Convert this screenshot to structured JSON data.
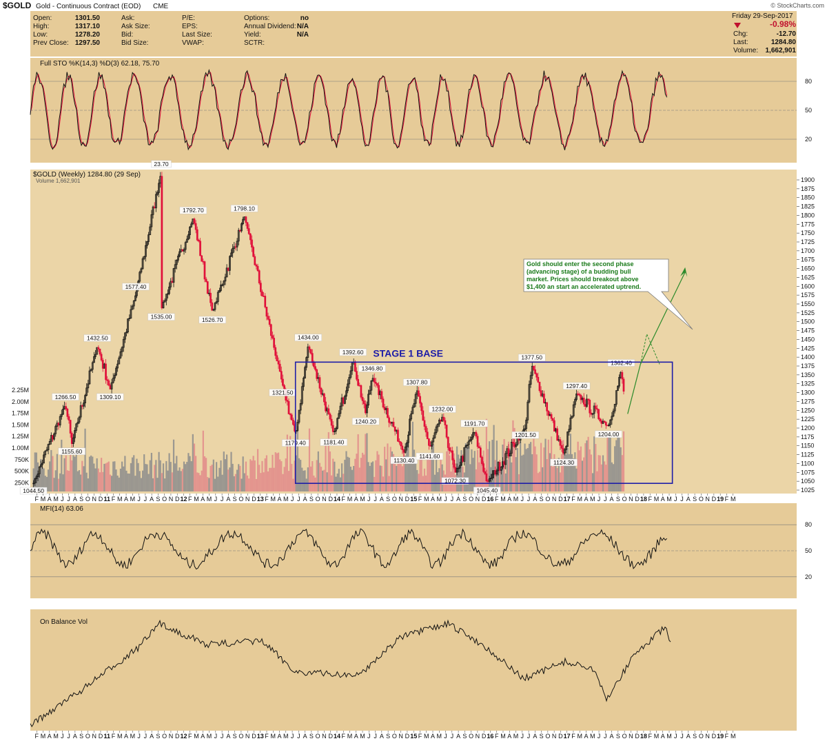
{
  "header": {
    "symbol": "$GOLD",
    "description": "Gold - Continuous Contract (EOD)",
    "exchange": "CME",
    "source": "© StockCharts.com",
    "date": "Friday  29-Sep-2017",
    "pct_change": "-0.98%",
    "stats_left": [
      {
        "label": "Open:",
        "value": "1301.50"
      },
      {
        "label": "High:",
        "value": "1317.10"
      },
      {
        "label": "Low:",
        "value": "1278.20"
      },
      {
        "label": "Prev Close:",
        "value": "1297.50"
      }
    ],
    "stats_mid": [
      "Ask:",
      "Ask Size:",
      "Bid:",
      "Bid Size:"
    ],
    "stats_mid2": [
      "P/E:",
      "EPS:",
      "Last Size:",
      "VWAP:"
    ],
    "stats_right": [
      {
        "label": "Options:",
        "value": "no"
      },
      {
        "label": "Annual Dividend:",
        "value": "N/A"
      },
      {
        "label": "Yield:",
        "value": "N/A"
      },
      {
        "label": "SCTR:",
        "value": ""
      }
    ],
    "stats_far": [
      {
        "label": "Chg:",
        "value": "-12.70"
      },
      {
        "label": "Last:",
        "value": "1284.80"
      },
      {
        "label": "Volume:",
        "value": "1,662,901"
      }
    ]
  },
  "colors": {
    "bg": "#e6cb98",
    "up": "#111111",
    "down": "#e0103a",
    "box": "#1c1ca8",
    "arrow": "#2b8a2b",
    "k_line": "#111111",
    "d_line": "#e0103a",
    "vol_up": "#8c8c8c",
    "vol_down": "#e28a8a"
  },
  "chart_data": [
    {
      "type": "line",
      "title": "Full STO %K(14,3) %D(3) 62.18, 75.70",
      "ylim": [
        0,
        100
      ],
      "yticks": [
        20,
        50,
        80
      ],
      "series": [
        {
          "name": "%K",
          "last": 62.18
        },
        {
          "name": "%D",
          "last": 75.7
        }
      ]
    },
    {
      "type": "candlestick",
      "title": "$GOLD (Weekly) 1284.80 (29 Sep)",
      "volume_label": "Volume 1,662,901",
      "ylim": [
        1025,
        1900
      ],
      "yticks": [
        1025,
        1050,
        1075,
        1100,
        1125,
        1150,
        1175,
        1200,
        1225,
        1250,
        1275,
        1300,
        1325,
        1350,
        1375,
        1400,
        1425,
        1450,
        1475,
        1500,
        1525,
        1550,
        1575,
        1600,
        1625,
        1650,
        1675,
        1700,
        1725,
        1750,
        1775,
        1800,
        1825,
        1850,
        1875,
        1900
      ],
      "volume_ticks": [
        "2.25M",
        "2.00M",
        "1.75M",
        "1.50M",
        "1.25M",
        "1.00M",
        "750K",
        "500K",
        "250K"
      ],
      "key_points": [
        {
          "date": "2010-01",
          "value": 1044.5,
          "label": "1044.50"
        },
        {
          "date": "2010-06",
          "value": 1266.5,
          "label": "1266.50"
        },
        {
          "date": "2010-07",
          "value": 1155.6,
          "label": "1155.60"
        },
        {
          "date": "2010-11",
          "value": 1432.5,
          "label": "1432.50"
        },
        {
          "date": "2011-01",
          "value": 1309.1,
          "label": "1309.10"
        },
        {
          "date": "2011-05",
          "value": 1577.4,
          "label": "1577.40"
        },
        {
          "date": "2011-09",
          "value": 1923.7,
          "label": "23.70"
        },
        {
          "date": "2011-09",
          "value": 1535.0,
          "label": "1535.00"
        },
        {
          "date": "2012-02",
          "value": 1792.7,
          "label": "1792.70"
        },
        {
          "date": "2012-05",
          "value": 1526.7,
          "label": "1526.70"
        },
        {
          "date": "2012-10",
          "value": 1798.1,
          "label": "1798.10"
        },
        {
          "date": "2013-04",
          "value": 1321.5,
          "label": "1321.50"
        },
        {
          "date": "2013-06",
          "value": 1179.4,
          "label": "1179.40"
        },
        {
          "date": "2013-08",
          "value": 1434.0,
          "label": "1434.00"
        },
        {
          "date": "2013-12",
          "value": 1181.4,
          "label": "1181.40"
        },
        {
          "date": "2014-03",
          "value": 1392.6,
          "label": "1392.60"
        },
        {
          "date": "2014-05",
          "value": 1240.2,
          "label": "1240.20"
        },
        {
          "date": "2014-06",
          "value": 1346.8,
          "label": "1346.80"
        },
        {
          "date": "2014-11",
          "value": 1130.4,
          "label": "1130.40"
        },
        {
          "date": "2015-01",
          "value": 1307.8,
          "label": "1307.80"
        },
        {
          "date": "2015-03",
          "value": 1141.6,
          "label": "1141.60"
        },
        {
          "date": "2015-05",
          "value": 1232.0,
          "label": "1232.00"
        },
        {
          "date": "2015-07",
          "value": 1072.3,
          "label": "1072.30"
        },
        {
          "date": "2015-10",
          "value": 1191.7,
          "label": "1191.70"
        },
        {
          "date": "2015-12",
          "value": 1045.4,
          "label": "1045.40"
        },
        {
          "date": "2016-07",
          "value": 1377.5,
          "label": "1377.50"
        },
        {
          "date": "2016-06",
          "value": 1201.5,
          "label": "1201.50"
        },
        {
          "date": "2016-12",
          "value": 1124.3,
          "label": "1124.30"
        },
        {
          "date": "2017-02",
          "value": 1297.4,
          "label": "1297.40"
        },
        {
          "date": "2017-07",
          "value": 1204.0,
          "label": "1204.00"
        },
        {
          "date": "2017-09",
          "value": 1362.4,
          "label": "1362.40"
        },
        {
          "date": "2017-09-29",
          "value": 1284.8,
          "label": ""
        }
      ],
      "annotation_box": {
        "label": "STAGE 1 BASE",
        "from": "2013-06",
        "to": "2018-05",
        "low": 1044,
        "high": 1386
      },
      "projection": [
        {
          "date": "2017-10",
          "value": 1240
        },
        {
          "date": "2017-12",
          "value": 1380
        },
        {
          "date": "2018-01",
          "value": 1465
        },
        {
          "date": "2018-03",
          "value": 1380
        },
        {
          "date": "2018-07",
          "value": 1640
        }
      ],
      "callout": [
        "Gold should enter the second phase",
        "(advancing stage) of a budding bull",
        "market. Prices should breakout above",
        "$1,400 an start an accelerated uptrend."
      ]
    },
    {
      "type": "line",
      "title": "MFI(14) 63.06",
      "ylim": [
        0,
        100
      ],
      "yticks": [
        20,
        50,
        80
      ]
    },
    {
      "type": "line",
      "title": "On Balance Vol"
    }
  ],
  "x_axis": {
    "labels": [
      "F",
      "M",
      "A",
      "M",
      "J",
      "J",
      "A",
      "S",
      "O",
      "N",
      "D",
      "11",
      "F",
      "M",
      "A",
      "M",
      "J",
      "J",
      "A",
      "S",
      "O",
      "N",
      "D",
      "12",
      "F",
      "M",
      "A",
      "M",
      "J",
      "J",
      "A",
      "S",
      "O",
      "N",
      "D",
      "13",
      "F",
      "M",
      "A",
      "M",
      "J",
      "J",
      "A",
      "S",
      "O",
      "N",
      "D",
      "14",
      "F",
      "M",
      "A",
      "M",
      "J",
      "J",
      "A",
      "S",
      "O",
      "N",
      "D",
      "15",
      "F",
      "M",
      "A",
      "M",
      "J",
      "J",
      "A",
      "S",
      "O",
      "N",
      "D",
      "16",
      "F",
      "M",
      "A",
      "M",
      "J",
      "J",
      "A",
      "S",
      "O",
      "N",
      "D",
      "17",
      "F",
      "M",
      "A",
      "M",
      "J",
      "J",
      "A",
      "S",
      "O",
      "N",
      "D",
      "18",
      "F",
      "M",
      "A",
      "M",
      "J",
      "J",
      "A",
      "S",
      "O",
      "N",
      "D",
      "19",
      "F",
      "M"
    ]
  }
}
